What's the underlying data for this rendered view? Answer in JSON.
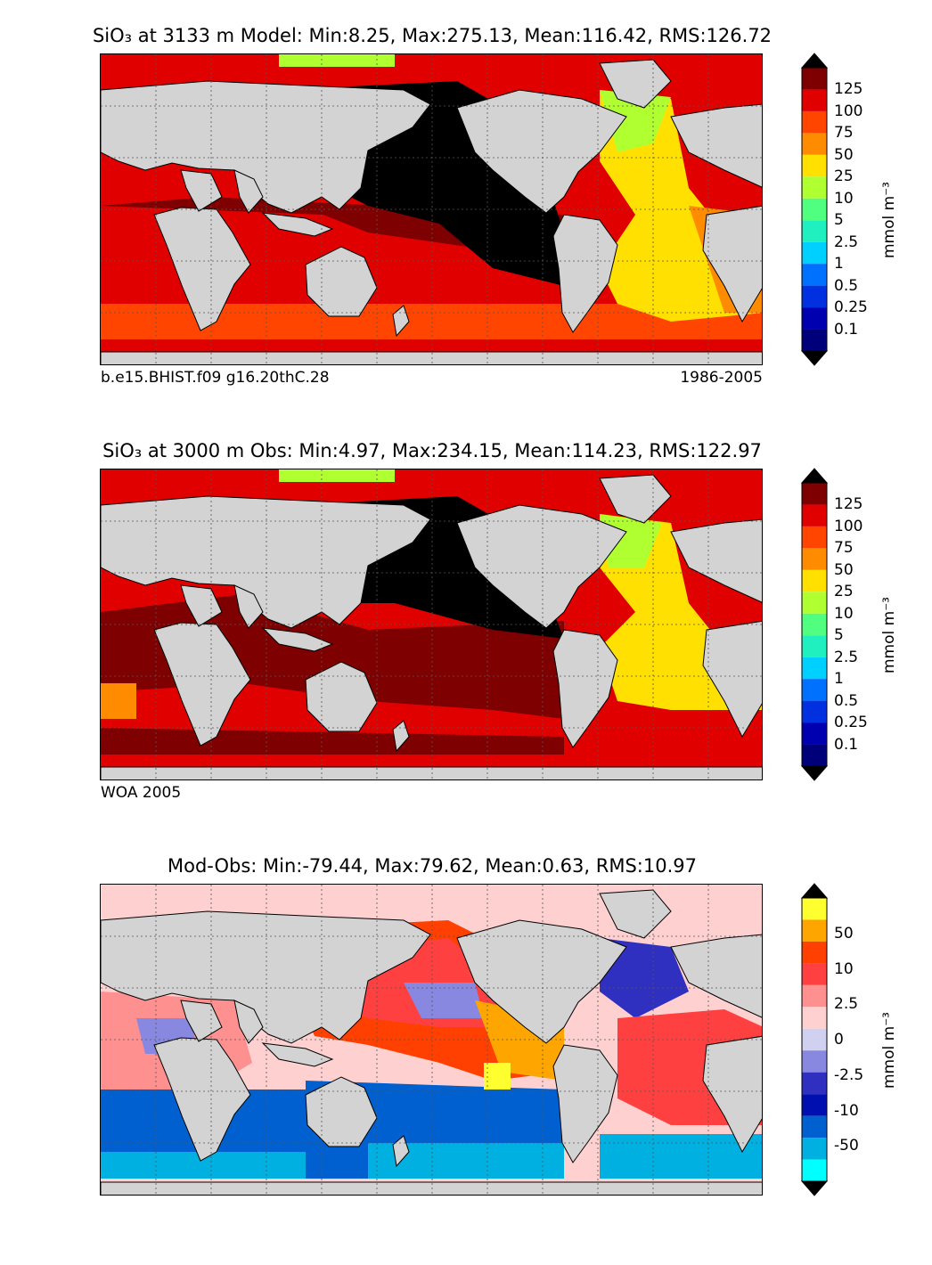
{
  "panels": [
    {
      "title": "SiO₃ at 3133 m Model: Min:8.25, Max:275.13, Mean:116.42, RMS:126.72",
      "note_left": "b.e15.BHIST.f09 g16.20thC.28",
      "note_right": "1986-2005",
      "colorbar": {
        "unit": "mmol m⁻³",
        "ticks": [
          "125",
          "100",
          "75",
          "50",
          "25",
          "10",
          "5",
          "2.5",
          "1",
          "0.5",
          "0.25",
          "0.1"
        ],
        "colors": [
          "#7f0000",
          "#e00000",
          "#ff4500",
          "#ff8c00",
          "#ffe000",
          "#b0ff30",
          "#50ff80",
          "#20f0c0",
          "#00d0ff",
          "#0070ff",
          "#0030e0",
          "#0000b0",
          "#00007a"
        ],
        "ext_colors": [
          "#000000",
          "#000000"
        ]
      }
    },
    {
      "title": "SiO₃ at 3000 m Obs: Min:4.97, Max:234.15, Mean:114.23, RMS:122.97",
      "note_left": "WOA 2005",
      "note_right": "",
      "colorbar": {
        "unit": "mmol m⁻³",
        "ticks": [
          "125",
          "100",
          "75",
          "50",
          "25",
          "10",
          "5",
          "2.5",
          "1",
          "0.5",
          "0.25",
          "0.1"
        ],
        "colors": [
          "#7f0000",
          "#e00000",
          "#ff4500",
          "#ff8c00",
          "#ffe000",
          "#b0ff30",
          "#50ff80",
          "#20f0c0",
          "#00d0ff",
          "#0070ff",
          "#0030e0",
          "#0000b0",
          "#00007a"
        ],
        "ext_colors": [
          "#000000",
          "#000000"
        ]
      }
    },
    {
      "title": "Mod-Obs: Min:-79.44, Max:79.62, Mean:0.63, RMS:10.97",
      "note_left": "",
      "note_right": "",
      "colorbar": {
        "unit": "mmol m⁻³",
        "ticks": [
          "50",
          "10",
          "2.5",
          "0",
          "-2.5",
          "-10",
          "-50"
        ],
        "colors": [
          "#ffff30",
          "#ffa500",
          "#ff4000",
          "#ff4040",
          "#ff9090",
          "#ffd0d0",
          "#d0d0f0",
          "#8888e0",
          "#3030c0",
          "#0010b0",
          "#0060d0",
          "#00b0e0",
          "#00ffff"
        ],
        "ext_colors": [
          "#000000",
          "#000000"
        ]
      }
    }
  ],
  "colors": {
    "land": "#d3d3d3",
    "coast": "#000000",
    "grid": "#555555"
  }
}
